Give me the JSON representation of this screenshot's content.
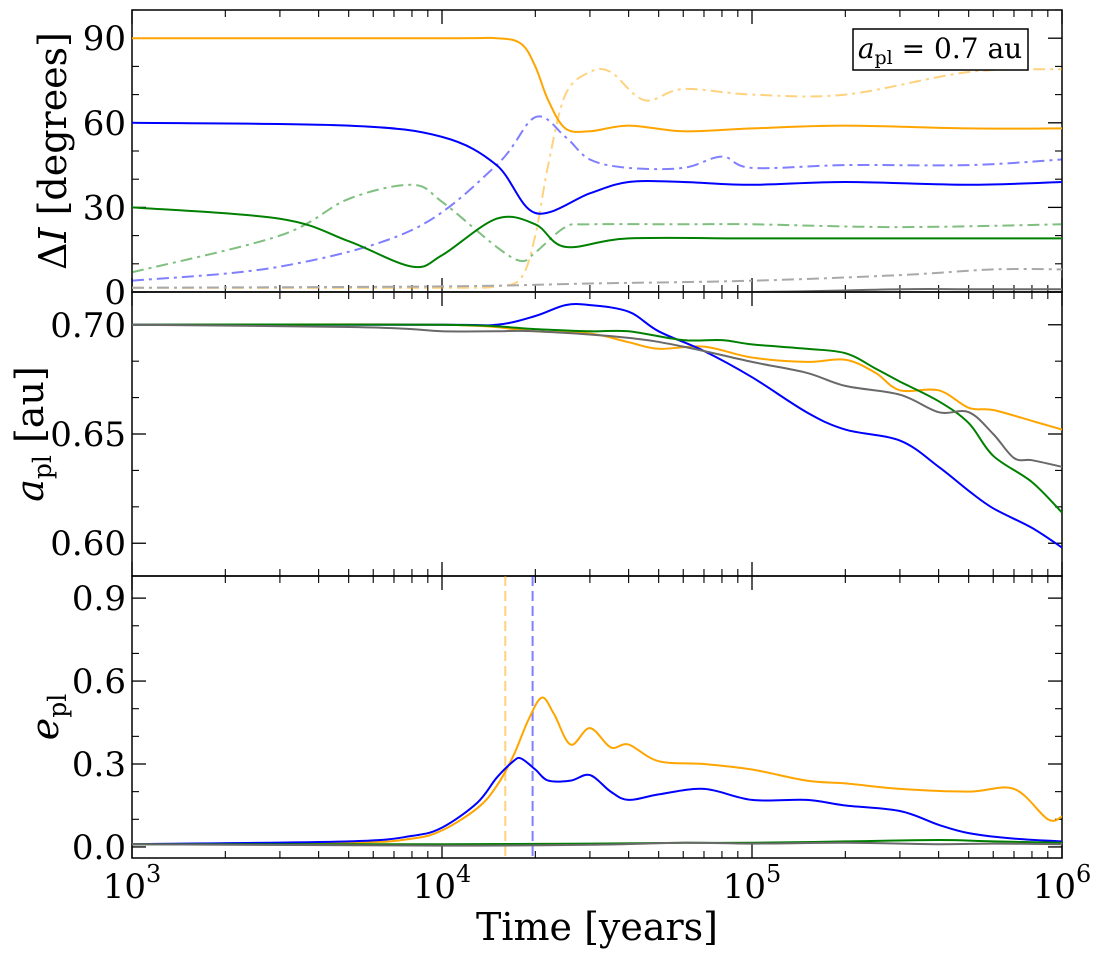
{
  "chart_data": [
    {
      "type": "line",
      "panel": "top",
      "ylabel": "ΔI [degrees]",
      "ylim": [
        0,
        100
      ],
      "yticks": [
        0,
        30,
        60,
        90
      ],
      "x_scale": "log",
      "xlim": [
        1000,
        1000000
      ],
      "annotation": "a_pl = 0.7 au",
      "series": [
        {
          "color": "#ffa500",
          "style": "solid",
          "x": [
            1000,
            10000,
            15000,
            18000,
            20000,
            22000,
            25000,
            30000,
            40000,
            60000,
            100000,
            200000,
            500000,
            1000000
          ],
          "y": [
            90,
            90,
            90,
            88,
            80,
            68,
            58,
            57,
            59,
            57,
            58,
            59,
            58,
            58
          ]
        },
        {
          "color": "#ffa500",
          "style": "dashdot",
          "faded": true,
          "x": [
            1000,
            10000,
            15000,
            18000,
            20000,
            22000,
            25000,
            30000,
            35000,
            45000,
            60000,
            100000,
            200000,
            500000,
            1000000
          ],
          "y": [
            1.5,
            1.5,
            2,
            5,
            20,
            45,
            70,
            78,
            78,
            68,
            72,
            70,
            70,
            78,
            79
          ]
        },
        {
          "color": "#0000ff",
          "style": "solid",
          "x": [
            1000,
            5000,
            10000,
            15000,
            20000,
            30000,
            40000,
            60000,
            100000,
            200000,
            500000,
            1000000
          ],
          "y": [
            60,
            59,
            55,
            45,
            28,
            35,
            39,
            39,
            38,
            39,
            38,
            39
          ]
        },
        {
          "color": "#0000ff",
          "style": "dashdot",
          "faded": true,
          "x": [
            1000,
            3000,
            8000,
            15000,
            20000,
            25000,
            30000,
            40000,
            60000,
            80000,
            100000,
            200000,
            500000,
            1000000
          ],
          "y": [
            4,
            9,
            22,
            45,
            62,
            55,
            47,
            44,
            44,
            48,
            44,
            45,
            45,
            47
          ]
        },
        {
          "color": "#008000",
          "style": "solid",
          "x": [
            1000,
            3000,
            5000,
            8000,
            10000,
            15000,
            20000,
            25000,
            40000,
            100000,
            300000,
            1000000
          ],
          "y": [
            30,
            26,
            18,
            9,
            13,
            26,
            24,
            16,
            19,
            19,
            19,
            19
          ]
        },
        {
          "color": "#008000",
          "style": "dashdot",
          "faded": true,
          "x": [
            1000,
            3000,
            5000,
            8000,
            10000,
            15000,
            18000,
            20000,
            25000,
            30000,
            60000,
            100000,
            300000,
            1000000
          ],
          "y": [
            7,
            20,
            33,
            38,
            32,
            16,
            11,
            14,
            23,
            24,
            24,
            24,
            23,
            24
          ]
        },
        {
          "color": "#696969",
          "style": "solid",
          "x": [
            1000,
            10000,
            100000,
            300000,
            500000,
            1000000
          ],
          "y": [
            0,
            0,
            0,
            1,
            1,
            1
          ]
        },
        {
          "color": "#a9a9a9",
          "style": "dashdot",
          "x": [
            1000,
            10000,
            30000,
            100000,
            300000,
            600000,
            1000000
          ],
          "y": [
            1.5,
            2,
            3,
            4,
            6,
            8,
            8
          ]
        }
      ]
    },
    {
      "type": "line",
      "panel": "middle",
      "ylabel": "a_pl [au]",
      "ylim": [
        0.585,
        0.715
      ],
      "yticks": [
        0.6,
        0.65,
        0.7
      ],
      "ytick_labels": [
        "0.60",
        "0.65",
        "0.70"
      ],
      "x_scale": "log",
      "xlim": [
        1000,
        1000000
      ],
      "series": [
        {
          "color": "#ffa500",
          "x": [
            1000,
            10000,
            20000,
            30000,
            40000,
            50000,
            70000,
            100000,
            150000,
            200000,
            250000,
            300000,
            400000,
            500000,
            600000,
            800000,
            1000000
          ],
          "y": [
            0.7,
            0.7,
            0.697,
            0.696,
            0.692,
            0.689,
            0.69,
            0.685,
            0.683,
            0.684,
            0.678,
            0.67,
            0.67,
            0.662,
            0.661,
            0.656,
            0.652
          ]
        },
        {
          "color": "#0000ff",
          "x": [
            1000,
            10000,
            15000,
            20000,
            25000,
            30000,
            40000,
            50000,
            70000,
            100000,
            150000,
            200000,
            300000,
            400000,
            500000,
            600000,
            800000,
            1000000
          ],
          "y": [
            0.7,
            0.7,
            0.7,
            0.704,
            0.709,
            0.709,
            0.706,
            0.697,
            0.688,
            0.676,
            0.66,
            0.652,
            0.647,
            0.635,
            0.624,
            0.616,
            0.607,
            0.598
          ]
        },
        {
          "color": "#008000",
          "x": [
            1000,
            10000,
            20000,
            30000,
            40000,
            60000,
            80000,
            100000,
            150000,
            200000,
            250000,
            300000,
            400000,
            500000,
            600000,
            800000,
            1000000
          ],
          "y": [
            0.7,
            0.7,
            0.698,
            0.697,
            0.697,
            0.693,
            0.693,
            0.691,
            0.689,
            0.687,
            0.68,
            0.674,
            0.665,
            0.655,
            0.64,
            0.628,
            0.614
          ]
        },
        {
          "color": "#696969",
          "x": [
            1000,
            5000,
            8000,
            10000,
            15000,
            20000,
            40000,
            60000,
            100000,
            150000,
            200000,
            300000,
            400000,
            500000,
            600000,
            700000,
            800000,
            1000000
          ],
          "y": [
            0.7,
            0.699,
            0.698,
            0.697,
            0.697,
            0.697,
            0.694,
            0.69,
            0.683,
            0.678,
            0.672,
            0.668,
            0.66,
            0.66,
            0.65,
            0.639,
            0.638,
            0.635
          ]
        }
      ]
    },
    {
      "type": "line",
      "panel": "bottom",
      "ylabel": "e_pl",
      "xlabel": "Time [years]",
      "ylim": [
        -0.04,
        0.98
      ],
      "yticks": [
        0,
        0.3,
        0.6,
        0.9
      ],
      "ytick_labels": [
        "0.0",
        "0.3",
        "0.6",
        "0.9"
      ],
      "x_scale": "log",
      "xlim": [
        1000,
        1000000
      ],
      "xticks": [
        1000,
        10000,
        100000,
        1000000
      ],
      "xtick_labels": [
        {
          "base": "10",
          "exp": "3"
        },
        {
          "base": "10",
          "exp": "4"
        },
        {
          "base": "10",
          "exp": "5"
        },
        {
          "base": "10",
          "exp": "6"
        }
      ],
      "vlines": [
        {
          "x": 16000,
          "color": "#ffa500",
          "style": "dashed"
        },
        {
          "x": 19600,
          "color": "#0000ff",
          "style": "dashed"
        }
      ],
      "series": [
        {
          "color": "#ffa500",
          "x": [
            1000,
            5000,
            8000,
            10000,
            13000,
            15000,
            17000,
            19000,
            21000,
            23000,
            26000,
            30000,
            35000,
            40000,
            50000,
            70000,
            100000,
            150000,
            200000,
            300000,
            500000,
            700000,
            900000,
            1000000
          ],
          "y": [
            0.01,
            0.015,
            0.03,
            0.06,
            0.14,
            0.22,
            0.33,
            0.46,
            0.54,
            0.48,
            0.37,
            0.43,
            0.36,
            0.37,
            0.31,
            0.3,
            0.28,
            0.24,
            0.23,
            0.21,
            0.2,
            0.21,
            0.1,
            0.11
          ]
        },
        {
          "color": "#0000ff",
          "x": [
            1000,
            5000,
            8000,
            10000,
            13000,
            15000,
            17000,
            18000,
            20000,
            22000,
            26000,
            30000,
            35000,
            40000,
            50000,
            70000,
            100000,
            150000,
            200000,
            300000,
            400000,
            500000,
            700000,
            1000000
          ],
          "y": [
            0.01,
            0.02,
            0.04,
            0.07,
            0.16,
            0.25,
            0.31,
            0.32,
            0.28,
            0.24,
            0.24,
            0.26,
            0.2,
            0.17,
            0.19,
            0.21,
            0.17,
            0.17,
            0.15,
            0.13,
            0.08,
            0.05,
            0.03,
            0.02
          ]
        },
        {
          "color": "#008000",
          "x": [
            1000,
            10000,
            30000,
            60000,
            100000,
            200000,
            400000,
            600000,
            1000000
          ],
          "y": [
            0.01,
            0.01,
            0.012,
            0.015,
            0.015,
            0.02,
            0.025,
            0.02,
            0.015
          ]
        },
        {
          "color": "#696969",
          "x": [
            1000,
            10000,
            30000,
            60000,
            100000,
            200000,
            400000,
            600000,
            1000000
          ],
          "y": [
            0.01,
            0.005,
            0.008,
            0.015,
            0.012,
            0.015,
            0.01,
            0.012,
            0.01
          ]
        }
      ]
    }
  ]
}
